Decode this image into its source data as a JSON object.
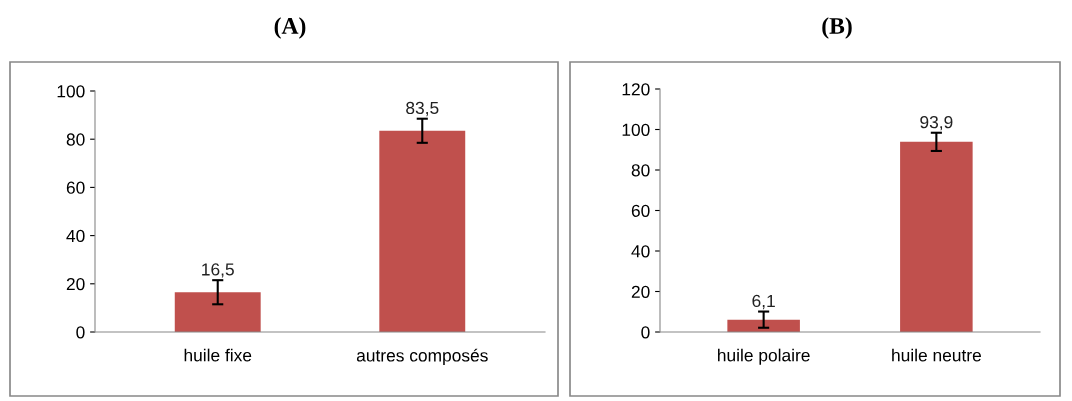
{
  "chart_data": [
    {
      "type": "bar",
      "title": "(A)",
      "categories": [
        "huile fixe",
        "autres composés"
      ],
      "values": [
        16.5,
        83.5
      ],
      "errors": [
        5,
        5
      ],
      "value_labels": [
        "16,5",
        "83,5"
      ],
      "color": "#c0504d",
      "ylim": [
        0,
        100
      ],
      "yticks": [
        0,
        20,
        40,
        60,
        80,
        100
      ],
      "grid": false,
      "legend": false
    },
    {
      "type": "bar",
      "title": "(B)",
      "categories": [
        "huile polaire",
        "huile neutre"
      ],
      "values": [
        6.1,
        93.9
      ],
      "errors": [
        4,
        4.5
      ],
      "value_labels": [
        "6,1",
        "93,9"
      ],
      "color": "#c0504d",
      "ylim": [
        0,
        120
      ],
      "yticks": [
        0,
        20,
        40,
        60,
        80,
        100,
        120
      ],
      "grid": false,
      "legend": false
    }
  ]
}
